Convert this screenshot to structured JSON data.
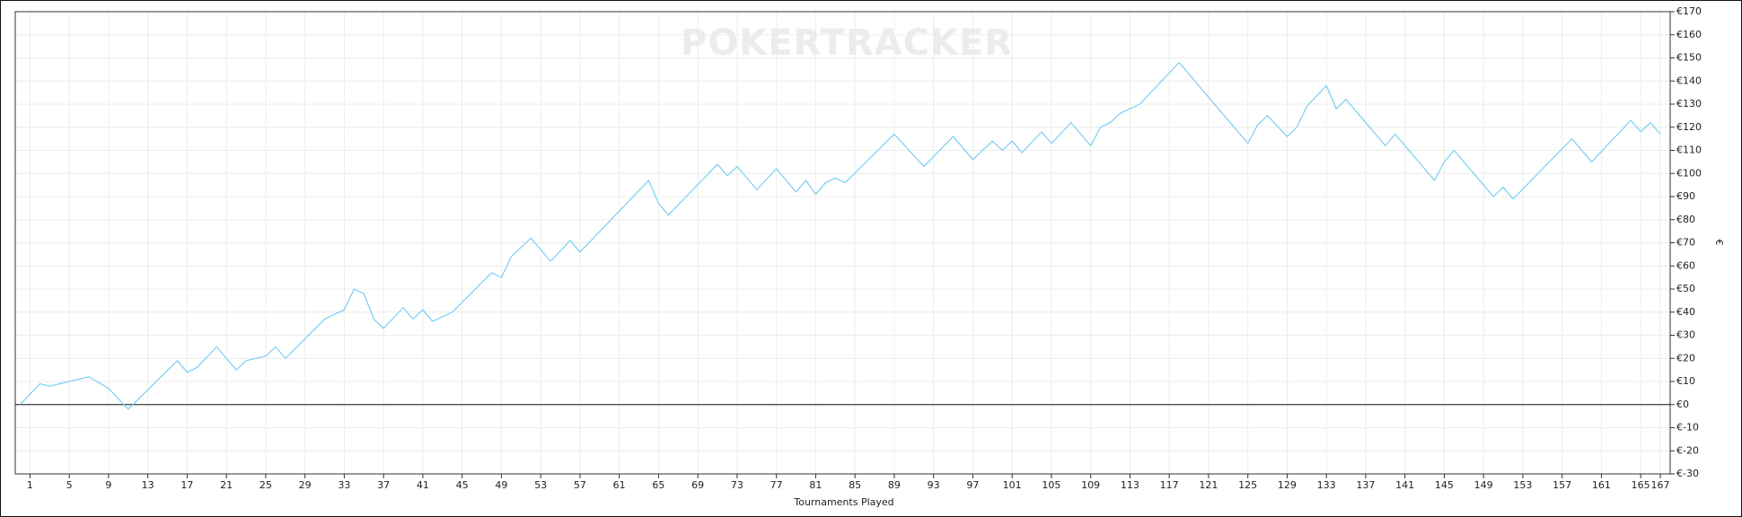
{
  "chart_data": {
    "type": "line",
    "watermark": "POKERTRACKER",
    "x_label": "Tournaments Played",
    "y_label": "€",
    "xlim": [
      -0.5,
      168
    ],
    "ylim": [
      -30,
      170
    ],
    "xticks": [
      1,
      5,
      9,
      13,
      17,
      21,
      25,
      29,
      33,
      37,
      41,
      45,
      49,
      53,
      57,
      61,
      65,
      69,
      73,
      77,
      81,
      85,
      89,
      93,
      97,
      101,
      105,
      109,
      113,
      117,
      121,
      125,
      129,
      133,
      137,
      141,
      145,
      149,
      153,
      157,
      161,
      165,
      167
    ],
    "yticks": [
      {
        "value": -30,
        "label": "€-30"
      },
      {
        "value": -20,
        "label": "€-20"
      },
      {
        "value": -10,
        "label": "€-10"
      },
      {
        "value": 0,
        "label": "€0"
      },
      {
        "value": 10,
        "label": "€10"
      },
      {
        "value": 20,
        "label": "€20"
      },
      {
        "value": 30,
        "label": "€30"
      },
      {
        "value": 40,
        "label": "€40"
      },
      {
        "value": 50,
        "label": "€50"
      },
      {
        "value": 60,
        "label": "€60"
      },
      {
        "value": 70,
        "label": "€70"
      },
      {
        "value": 80,
        "label": "€80"
      },
      {
        "value": 90,
        "label": "€90"
      },
      {
        "value": 100,
        "label": "€100"
      },
      {
        "value": 110,
        "label": "€110"
      },
      {
        "value": 120,
        "label": "€120"
      },
      {
        "value": 130,
        "label": "€130"
      },
      {
        "value": 140,
        "label": "€140"
      },
      {
        "value": 150,
        "label": "€150"
      },
      {
        "value": 160,
        "label": "€160"
      },
      {
        "value": 170,
        "label": "€170"
      }
    ],
    "grid": true,
    "zero_line": true,
    "x": [
      0,
      2,
      3,
      5,
      7,
      9,
      11,
      16,
      17,
      18,
      20,
      22,
      23,
      25,
      26,
      27,
      31,
      33,
      34,
      35,
      36,
      37,
      39,
      40,
      41,
      42,
      44,
      48,
      49,
      50,
      52,
      54,
      56,
      57,
      64,
      65,
      66,
      71,
      72,
      73,
      75,
      77,
      79,
      80,
      81,
      82,
      83,
      84,
      89,
      92,
      95,
      97,
      99,
      100,
      101,
      102,
      104,
      105,
      107,
      109,
      110,
      111,
      112,
      114,
      118,
      125,
      126,
      127,
      129,
      130,
      131,
      133,
      134,
      135,
      139,
      140,
      144,
      145,
      146,
      150,
      151,
      152,
      158,
      160,
      164,
      165,
      166,
      167
    ],
    "series": [
      {
        "color": "#7ccdf2",
        "values": [
          0,
          9,
          8,
          10,
          12,
          7,
          -2,
          19,
          14,
          16,
          25,
          15,
          19,
          21,
          25,
          20,
          37,
          41,
          50,
          48,
          37,
          33,
          42,
          37,
          41,
          36,
          40,
          57,
          55,
          64,
          72,
          62,
          71,
          66,
          97,
          87,
          82,
          104,
          99,
          103,
          93,
          102,
          92,
          97,
          91,
          96,
          98,
          96,
          117,
          103,
          116,
          106,
          114,
          110,
          114,
          109,
          118,
          113,
          122,
          112,
          120,
          122,
          126,
          130,
          148,
          113,
          121,
          125,
          116,
          120,
          129,
          138,
          128,
          132,
          112,
          117,
          97,
          105,
          110,
          90,
          94,
          89,
          115,
          105,
          123,
          118,
          122,
          117
        ]
      }
    ]
  }
}
